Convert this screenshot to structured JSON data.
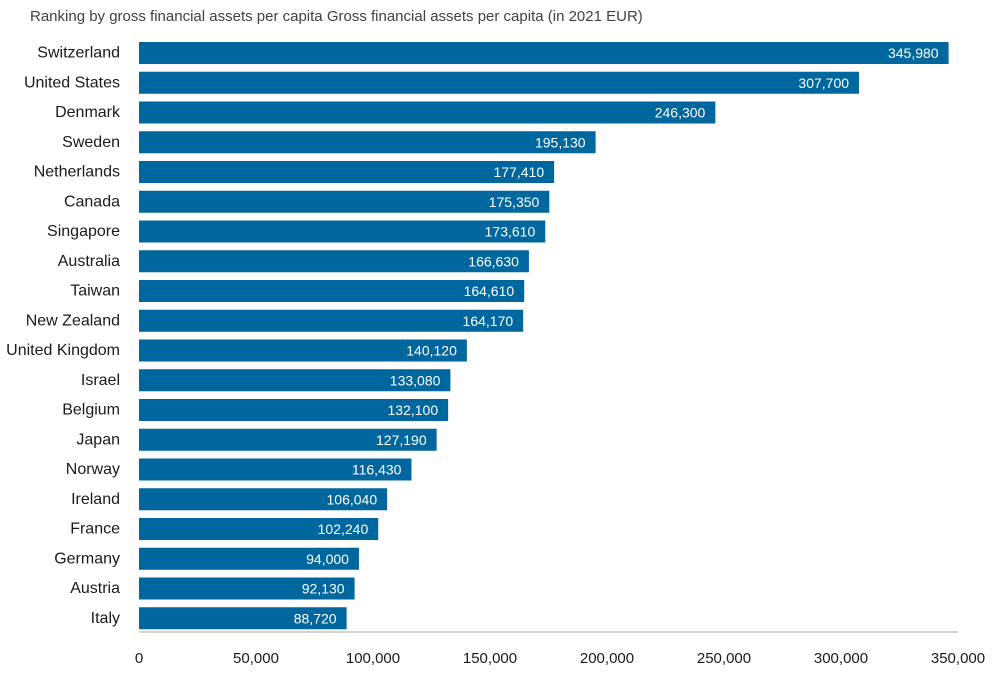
{
  "chart_data": {
    "type": "bar",
    "orientation": "horizontal",
    "title": "Ranking by gross financial assets per capita Gross financial assets per capita (in 2021 EUR)",
    "xlabel": "",
    "ylabel": "",
    "categories": [
      "Switzerland",
      "United States",
      "Denmark",
      "Sweden",
      "Netherlands",
      "Canada",
      "Singapore",
      "Australia",
      "Taiwan",
      "New Zealand",
      "United Kingdom",
      "Israel",
      "Belgium",
      "Japan",
      "Norway",
      "Ireland",
      "France",
      "Germany",
      "Austria",
      "Italy"
    ],
    "values": [
      345980,
      307700,
      246300,
      195130,
      177410,
      175350,
      173610,
      166630,
      164610,
      164170,
      140120,
      133080,
      132100,
      127190,
      116430,
      106040,
      102240,
      94000,
      92130,
      88720
    ],
    "value_labels": [
      "345,980",
      "307,700",
      "246,300",
      "195,130",
      "177,410",
      "175,350",
      "173,610",
      "166,630",
      "164,610",
      "164,170",
      "140,120",
      "133,080",
      "132,100",
      "127,190",
      "116,430",
      "106,040",
      "102,240",
      "94,000",
      "92,130",
      "88,720"
    ],
    "xlim": [
      0,
      350000
    ],
    "x_ticks": [
      0,
      50000,
      100000,
      150000,
      200000,
      250000,
      300000,
      350000
    ],
    "x_tick_labels": [
      "0",
      "50,000",
      "100,000",
      "150,000",
      "200,000",
      "250,000",
      "300,000",
      "350,000"
    ],
    "grid": false,
    "legend": "none",
    "bar_color": "#00679e",
    "value_label_color": "#ffffff",
    "axis_color": "#aaaaaa"
  }
}
